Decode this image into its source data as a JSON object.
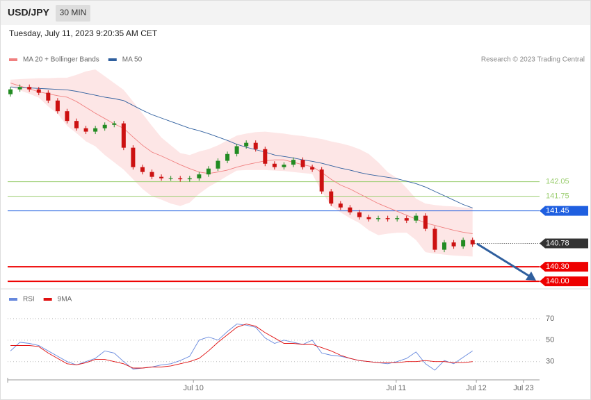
{
  "header": {
    "symbol": "USD/JPY",
    "interval": "30 MIN",
    "date": "Tuesday, July 11, 2023 9:20:35 AM CET",
    "credit": "Research © 2023 Trading Central"
  },
  "chart_data": [
    {
      "type": "candlestick",
      "up_color": "#228b22",
      "down_color": "#cc1111",
      "xlim": [
        -0.3,
        56.1
      ],
      "ylim": [
        139.93,
        144.36
      ],
      "open": [
        143.85,
        143.95,
        144.0,
        143.95,
        143.88,
        143.72,
        143.5,
        143.3,
        143.15,
        143.08,
        143.15,
        143.22,
        143.25,
        142.75,
        142.35,
        142.25,
        142.15,
        142.12,
        142.12,
        142.1,
        142.12,
        142.2,
        142.32,
        142.48,
        142.62,
        142.78,
        142.85,
        142.72,
        142.42,
        142.35,
        142.4,
        142.5,
        142.35,
        142.3,
        141.85,
        141.6,
        141.52,
        141.42,
        141.32,
        141.28,
        141.3,
        141.28,
        141.3,
        141.25,
        141.35,
        141.08,
        140.65,
        140.8,
        140.72,
        140.85
      ],
      "high": [
        144.0,
        144.05,
        144.05,
        144.0,
        143.93,
        143.77,
        143.55,
        143.35,
        143.2,
        143.2,
        143.27,
        143.3,
        143.3,
        142.8,
        142.4,
        142.3,
        142.2,
        142.17,
        142.17,
        142.17,
        142.25,
        142.37,
        142.53,
        142.67,
        142.83,
        142.9,
        142.9,
        142.77,
        142.47,
        142.45,
        142.55,
        142.55,
        142.4,
        142.35,
        141.9,
        141.65,
        141.57,
        141.47,
        141.37,
        141.35,
        141.35,
        141.35,
        141.35,
        141.4,
        141.4,
        141.13,
        140.85,
        140.85,
        140.9,
        140.9
      ],
      "low": [
        143.8,
        143.9,
        143.9,
        143.83,
        143.67,
        143.45,
        143.25,
        143.1,
        143.03,
        143.03,
        143.1,
        143.17,
        142.7,
        142.3,
        142.2,
        142.1,
        142.07,
        142.07,
        142.05,
        142.05,
        142.07,
        142.15,
        142.27,
        142.43,
        142.57,
        142.73,
        142.67,
        142.37,
        142.3,
        142.3,
        142.35,
        142.3,
        142.25,
        141.8,
        141.55,
        141.47,
        141.37,
        141.27,
        141.23,
        141.23,
        141.23,
        141.23,
        141.2,
        141.2,
        141.03,
        140.6,
        140.6,
        140.67,
        140.67,
        140.71
      ],
      "close": [
        143.95,
        144.0,
        143.95,
        143.88,
        143.72,
        143.5,
        143.3,
        143.15,
        143.08,
        143.15,
        143.22,
        143.25,
        142.75,
        142.35,
        142.25,
        142.15,
        142.12,
        142.12,
        142.1,
        142.12,
        142.2,
        142.32,
        142.48,
        142.62,
        142.78,
        142.85,
        142.72,
        142.42,
        142.35,
        142.4,
        142.5,
        142.35,
        142.3,
        141.85,
        141.6,
        141.52,
        141.42,
        141.32,
        141.28,
        141.3,
        141.28,
        141.3,
        141.25,
        141.35,
        141.08,
        140.65,
        140.8,
        140.72,
        140.85,
        140.76
      ],
      "bands": {
        "color": "#fde0e0",
        "upper": [
          144.15,
          144.16,
          144.17,
          144.18,
          144.18,
          144.19,
          144.19,
          144.25,
          144.32,
          144.36,
          144.22,
          144.08,
          143.94,
          143.7,
          143.45,
          143.2,
          142.96,
          142.8,
          142.64,
          142.6,
          142.67,
          142.72,
          142.8,
          142.9,
          143.0,
          143.04,
          143.07,
          143.08,
          143.06,
          143.04,
          143.01,
          142.99,
          142.96,
          142.93,
          142.88,
          142.84,
          142.79,
          142.72,
          142.62,
          142.45,
          142.25,
          142.12,
          141.92,
          141.7,
          141.6,
          141.57,
          141.55,
          141.54,
          141.52,
          141.51
        ],
        "lower": [
          144.0,
          143.93,
          143.86,
          143.78,
          143.6,
          143.45,
          143.2,
          143.05,
          142.88,
          142.78,
          142.6,
          142.45,
          142.3,
          142.1,
          141.9,
          141.75,
          141.68,
          141.6,
          141.55,
          141.62,
          141.8,
          141.94,
          142.05,
          142.17,
          142.28,
          142.29,
          142.29,
          142.29,
          142.28,
          142.27,
          142.25,
          142.23,
          142.21,
          141.85,
          141.55,
          141.42,
          141.3,
          141.2,
          141.05,
          140.95,
          140.98,
          141.0,
          141.0,
          140.85,
          140.6,
          140.57,
          140.55,
          140.53,
          140.52,
          140.51
        ]
      },
      "series": [
        {
          "name": "MA 20 + Bollinger Bands",
          "color": "#f08080",
          "values": [
            144.08,
            144.02,
            143.96,
            143.9,
            143.86,
            143.82,
            143.79,
            143.7,
            143.58,
            143.46,
            143.35,
            143.24,
            143.15,
            142.97,
            142.8,
            142.66,
            142.58,
            142.49,
            142.4,
            142.32,
            142.25,
            142.22,
            142.25,
            142.29,
            142.35,
            142.4,
            142.44,
            142.48,
            142.5,
            142.5,
            142.45,
            142.4,
            142.36,
            142.24,
            142.1,
            141.98,
            141.9,
            141.8,
            141.7,
            141.6,
            141.52,
            141.44,
            141.36,
            141.28,
            141.2,
            141.15,
            141.1,
            141.05,
            141.01,
            140.98
          ]
        },
        {
          "name": "MA 50",
          "color": "#2f5f9e",
          "values": [
            144.0,
            143.99,
            143.98,
            143.97,
            143.96,
            143.95,
            143.94,
            143.91,
            143.87,
            143.83,
            143.79,
            143.76,
            143.72,
            143.62,
            143.52,
            143.43,
            143.36,
            143.29,
            143.22,
            143.15,
            143.1,
            143.04,
            142.97,
            142.9,
            142.82,
            142.76,
            142.71,
            142.66,
            142.6,
            142.57,
            142.54,
            142.5,
            142.47,
            142.43,
            142.38,
            142.33,
            142.29,
            142.24,
            142.2,
            142.17,
            142.14,
            142.11,
            142.06,
            142.01,
            141.94,
            141.85,
            141.76,
            141.67,
            141.58,
            141.51
          ]
        }
      ],
      "levels": [
        {
          "value": 142.05,
          "label": "142.05",
          "color": "#9acd6e",
          "style": "plain",
          "line": "solid"
        },
        {
          "value": 141.75,
          "label": "141.75",
          "color": "#9acd6e",
          "style": "plain",
          "line": "solid"
        },
        {
          "value": 141.45,
          "label": "141.45",
          "color": "#1f5fe0",
          "style": "tag",
          "line": "solid"
        },
        {
          "value": 140.78,
          "label": "140.78",
          "color": "#333333",
          "style": "tag",
          "line": "dotted"
        },
        {
          "value": 140.3,
          "label": "140.30",
          "color": "#ee0000",
          "style": "tag",
          "line": "thick"
        },
        {
          "value": 140,
          "label": "140.00",
          "color": "#ee0000",
          "style": "tag",
          "line": "thick"
        }
      ]
    },
    {
      "type": "line",
      "xlim": [
        -0.3,
        56.1
      ],
      "ylim": [
        13,
        79
      ],
      "yticks": [
        30,
        50,
        70
      ],
      "xticks": [
        {
          "value": 19.4,
          "label": "Jul 10"
        },
        {
          "value": 40.9,
          "label": "Jul 11"
        },
        {
          "value": 49.4,
          "label": "Jul 12"
        },
        {
          "value": 54.4,
          "label": "Jul 23"
        }
      ],
      "series": [
        {
          "name": "RSI",
          "color": "#6688dd",
          "values": [
            40,
            48,
            47,
            45,
            40,
            35,
            30,
            27,
            30,
            33,
            40,
            38,
            30,
            23,
            24,
            25,
            27,
            28,
            31,
            35,
            50,
            53,
            50,
            58,
            65,
            64,
            62,
            52,
            47,
            50,
            48,
            46,
            50,
            38,
            36,
            35,
            33,
            31,
            30,
            29,
            28,
            30,
            33,
            39,
            28,
            22,
            31,
            28,
            34,
            40
          ]
        },
        {
          "name": "9MA",
          "color": "#e01010",
          "values": [
            45,
            45,
            45,
            44,
            38,
            33,
            28,
            27,
            29,
            32,
            32,
            30,
            28,
            24,
            24,
            25,
            25,
            26,
            28,
            30,
            33,
            40,
            48,
            55,
            62,
            65,
            63,
            57,
            52,
            47,
            47,
            46,
            46,
            43,
            40,
            36,
            33,
            31,
            30,
            29,
            29,
            29,
            30,
            30,
            31,
            30,
            30,
            29,
            29,
            30
          ]
        }
      ]
    }
  ]
}
